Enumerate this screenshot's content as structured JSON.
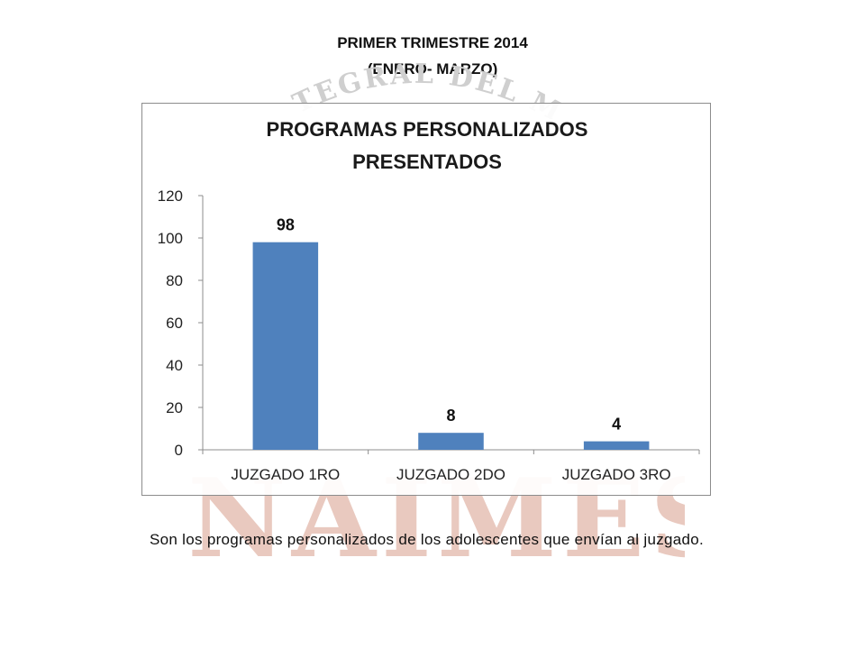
{
  "header": {
    "line1": "PRIMER TRIMESTRE 2014",
    "line2": "(ENERO- MARZO)"
  },
  "watermark": {
    "arc_text": "INTEGRAL DEL ME",
    "big_text": "INAIMES",
    "color": "#e9c9bf"
  },
  "chart_data": {
    "type": "bar",
    "title_lines": [
      "PROGRAMAS PERSONALIZADOS",
      "PRESENTADOS"
    ],
    "categories": [
      "JUZGADO 1RO",
      "JUZGADO 2DO",
      "JUZGADO 3RO"
    ],
    "values": [
      98,
      8,
      4
    ],
    "data_labels": [
      "98",
      "8",
      "4"
    ],
    "ylim": [
      0,
      120
    ],
    "yticks": [
      0,
      20,
      40,
      60,
      80,
      100,
      120
    ],
    "ytick_labels": [
      "0",
      "20",
      "40",
      "60",
      "80",
      "100",
      "120"
    ],
    "grid": false,
    "legend": "none",
    "bar_color": "#4f81bd",
    "xlabel": "",
    "ylabel": ""
  },
  "description": "Son los programas personalizados de los adolescentes que envían al juzgado."
}
